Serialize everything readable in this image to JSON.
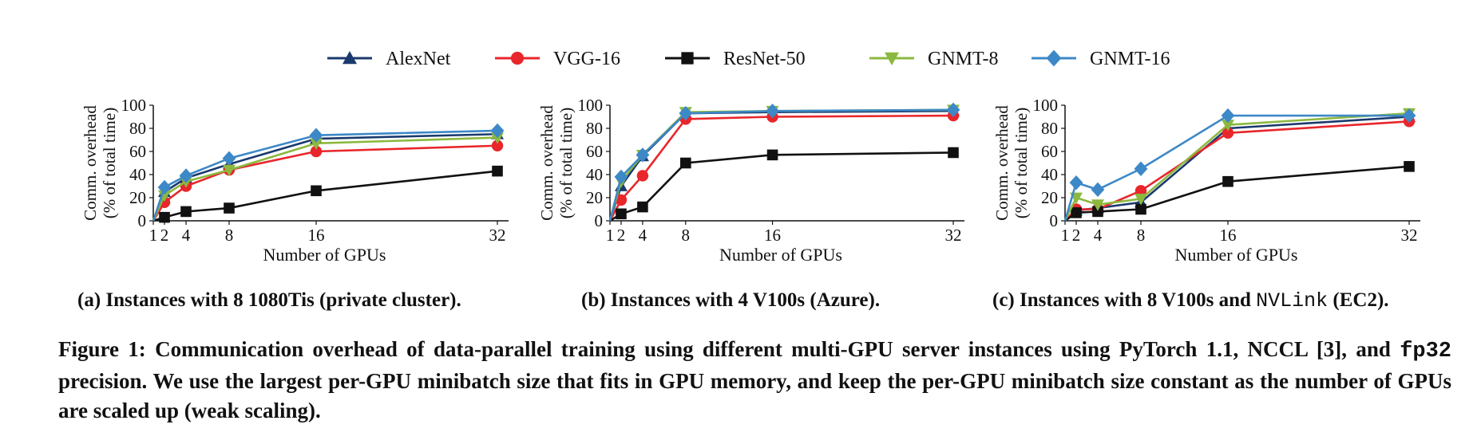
{
  "legend": [
    {
      "name": "AlexNet",
      "color": "#1a3a6e",
      "marker": "triangle-up"
    },
    {
      "name": "VGG-16",
      "color": "#e8262b",
      "marker": "circle"
    },
    {
      "name": "ResNet-50",
      "color": "#111111",
      "marker": "square"
    },
    {
      "name": "GNMT-8",
      "color": "#8bb83f",
      "marker": "triangle-down"
    },
    {
      "name": "GNMT-16",
      "color": "#3d88c7",
      "marker": "diamond"
    }
  ],
  "chart_data": [
    {
      "type": "line",
      "ylabel": [
        "Comm. overhead",
        "(% of total time)"
      ],
      "xlabel": "Number of GPUs",
      "x": [
        1,
        2,
        4,
        8,
        16,
        32
      ],
      "xticks": [
        1,
        2,
        4,
        8,
        16,
        32
      ],
      "yticks": [
        0,
        20,
        40,
        60,
        80,
        100
      ],
      "xlim": [
        1,
        32
      ],
      "ylim": [
        0,
        100
      ],
      "subcaption_prefix": "(a) Instances with 8 1080Tis (private cluster).",
      "series": [
        {
          "name": "AlexNet",
          "values": [
            0,
            25,
            37,
            49,
            71,
            75
          ]
        },
        {
          "name": "VGG-16",
          "values": [
            0,
            16,
            30,
            44,
            60,
            65
          ]
        },
        {
          "name": "ResNet-50",
          "values": [
            0,
            3,
            8,
            11,
            26,
            43
          ]
        },
        {
          "name": "GNMT-8",
          "values": [
            0,
            22,
            34,
            44,
            67,
            72
          ]
        },
        {
          "name": "GNMT-16",
          "values": [
            0,
            29,
            39,
            54,
            74,
            78
          ]
        }
      ]
    },
    {
      "type": "line",
      "ylabel": [
        "Comm. overhead",
        "(% of total time)"
      ],
      "xlabel": "Number of GPUs",
      "x": [
        1,
        2,
        4,
        8,
        16,
        32
      ],
      "xticks": [
        1,
        2,
        4,
        8,
        16,
        32
      ],
      "yticks": [
        0,
        20,
        40,
        60,
        80,
        100
      ],
      "xlim": [
        1,
        32
      ],
      "ylim": [
        0,
        100
      ],
      "subcaption_prefix": "(b) Instances with 4 V100s (Azure).",
      "series": [
        {
          "name": "AlexNet",
          "values": [
            0,
            30,
            56,
            93,
            94,
            95
          ]
        },
        {
          "name": "VGG-16",
          "values": [
            0,
            18,
            39,
            88,
            90,
            91
          ]
        },
        {
          "name": "ResNet-50",
          "values": [
            0,
            6,
            12,
            50,
            57,
            59
          ]
        },
        {
          "name": "GNMT-8",
          "values": [
            0,
            34,
            57,
            94,
            95,
            96
          ]
        },
        {
          "name": "GNMT-16",
          "values": [
            0,
            38,
            57,
            93,
            95,
            96
          ]
        }
      ]
    },
    {
      "type": "line",
      "ylabel": [
        "Comm. overhead",
        "(% of total time)"
      ],
      "xlabel": "Number of GPUs",
      "x": [
        1,
        2,
        4,
        8,
        16,
        32
      ],
      "xticks": [
        1,
        2,
        4,
        8,
        16,
        32
      ],
      "yticks": [
        0,
        20,
        40,
        60,
        80,
        100
      ],
      "xlim": [
        1,
        32
      ],
      "ylim": [
        0,
        100
      ],
      "subcaption_prefix": "(c) Instances with 8 V100s and ",
      "subcaption_mono": "NVLink",
      "subcaption_suffix": " (EC2).",
      "series": [
        {
          "name": "AlexNet",
          "values": [
            0,
            9,
            11,
            16,
            80,
            90
          ]
        },
        {
          "name": "VGG-16",
          "values": [
            0,
            10,
            10,
            26,
            76,
            86
          ]
        },
        {
          "name": "ResNet-50",
          "values": [
            0,
            7,
            8,
            10,
            34,
            47
          ]
        },
        {
          "name": "GNMT-8",
          "values": [
            0,
            20,
            14,
            19,
            83,
            93
          ]
        },
        {
          "name": "GNMT-16",
          "values": [
            0,
            33,
            27,
            45,
            91,
            91
          ]
        }
      ]
    }
  ],
  "caption": {
    "part1": "Figure 1: Communication overhead of data-parallel training using different multi-GPU server instances using PyTorch 1.1, NCCL [3], and ",
    "mono": "fp32",
    "part2": " precision. We use the largest per-GPU minibatch size that fits in GPU memory, and keep the per-GPU minibatch size constant as the number of GPUs are scaled up (weak scaling)."
  }
}
